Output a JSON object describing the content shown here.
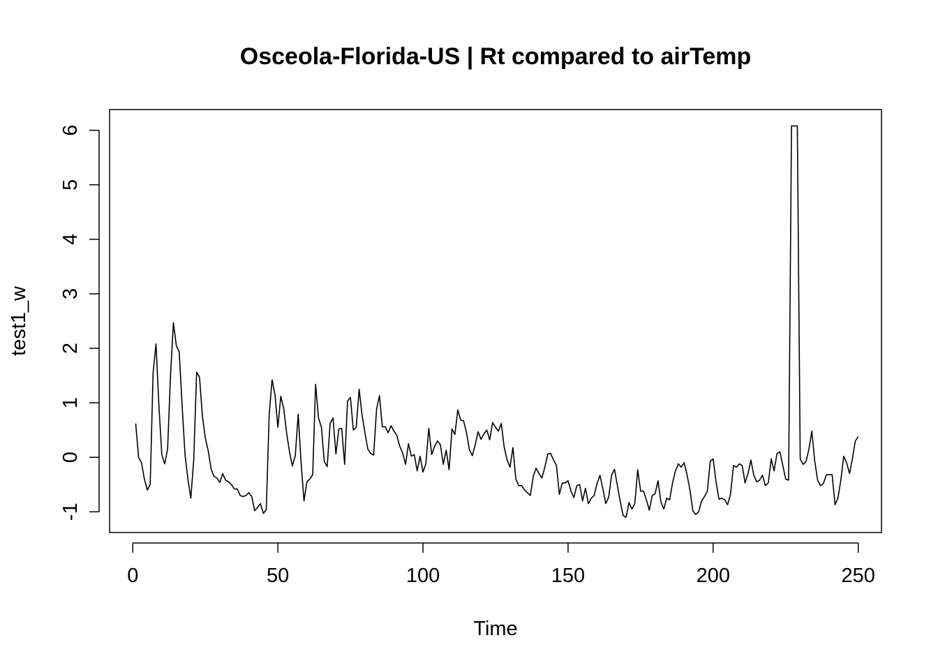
{
  "chart_data": {
    "type": "line",
    "title": "Osceola-Florida-US | Rt compared to airTemp",
    "xlabel": "Time",
    "ylabel": "test1_w",
    "xlim": [
      -8,
      258
    ],
    "ylim": [
      -1.38,
      6.38
    ],
    "x_ticks": [
      0,
      50,
      100,
      150,
      200,
      250
    ],
    "y_ticks": [
      -1,
      0,
      1,
      2,
      3,
      4,
      5,
      6
    ],
    "grid": false,
    "legend": "none",
    "colors": {
      "line": "#000000",
      "background": "#ffffff"
    },
    "series": [
      {
        "x_start": 1,
        "values": [
          0.62,
          0.0,
          -0.1,
          -0.4,
          -0.6,
          -0.5,
          1.55,
          2.08,
          0.95,
          0.05,
          -0.12,
          0.15,
          1.5,
          2.47,
          2.05,
          1.93,
          0.95,
          0.05,
          -0.4,
          -0.75,
          -0.05,
          1.56,
          1.47,
          0.75,
          0.35,
          0.12,
          -0.22,
          -0.35,
          -0.38,
          -0.46,
          -0.3,
          -0.42,
          -0.45,
          -0.5,
          -0.58,
          -0.58,
          -0.7,
          -0.72,
          -0.7,
          -0.65,
          -0.72,
          -0.98,
          -0.92,
          -0.85,
          -1.03,
          -0.96,
          0.78,
          1.42,
          1.15,
          0.55,
          1.12,
          0.9,
          0.45,
          0.1,
          -0.16,
          0.03,
          0.79,
          -0.1,
          -0.8,
          -0.45,
          -0.4,
          -0.32,
          1.34,
          0.72,
          0.55,
          -0.08,
          -0.17,
          0.62,
          0.72,
          0.06,
          0.52,
          0.53,
          -0.13,
          1.03,
          1.1,
          0.5,
          0.55,
          1.25,
          0.78,
          0.45,
          0.15,
          0.07,
          0.04,
          0.88,
          1.13,
          0.56,
          0.56,
          0.45,
          0.58,
          0.48,
          0.4,
          0.2,
          0.08,
          -0.13,
          0.25,
          0.02,
          0.05,
          -0.25,
          0.02,
          -0.27,
          -0.12,
          0.53,
          0.05,
          0.2,
          0.3,
          0.23,
          -0.13,
          0.13,
          -0.23,
          0.52,
          0.42,
          0.87,
          0.68,
          0.67,
          0.45,
          0.14,
          0.03,
          0.23,
          0.47,
          0.33,
          0.43,
          0.5,
          0.32,
          0.64,
          0.55,
          0.48,
          0.62,
          0.18,
          -0.05,
          -0.18,
          0.18,
          -0.4,
          -0.52,
          -0.52,
          -0.6,
          -0.65,
          -0.7,
          -0.35,
          -0.2,
          -0.3,
          -0.38,
          -0.18,
          0.06,
          0.07,
          -0.05,
          -0.15,
          -0.68,
          -0.47,
          -0.47,
          -0.43,
          -0.62,
          -0.74,
          -0.52,
          -0.5,
          -0.8,
          -0.57,
          -0.85,
          -0.75,
          -0.7,
          -0.48,
          -0.33,
          -0.58,
          -0.85,
          -0.73,
          -0.33,
          -0.22,
          -0.52,
          -0.82,
          -1.07,
          -1.1,
          -0.83,
          -0.95,
          -0.85,
          -0.23,
          -0.62,
          -0.62,
          -0.78,
          -0.97,
          -0.7,
          -0.67,
          -0.43,
          -0.82,
          -0.95,
          -0.75,
          -0.78,
          -0.47,
          -0.25,
          -0.12,
          -0.18,
          -0.1,
          -0.32,
          -0.6,
          -0.98,
          -1.05,
          -1.0,
          -0.8,
          -0.72,
          -0.62,
          -0.07,
          -0.03,
          -0.45,
          -0.77,
          -0.75,
          -0.78,
          -0.87,
          -0.67,
          -0.15,
          -0.18,
          -0.12,
          -0.15,
          -0.47,
          -0.3,
          -0.05,
          -0.33,
          -0.45,
          -0.42,
          -0.33,
          -0.52,
          -0.47,
          -0.03,
          -0.25,
          0.07,
          0.1,
          -0.15,
          -0.4,
          -0.42,
          6.08,
          6.08,
          6.08,
          -0.03,
          -0.13,
          -0.08,
          0.15,
          0.48,
          -0.07,
          -0.42,
          -0.52,
          -0.48,
          -0.32,
          -0.32,
          -0.32,
          -0.87,
          -0.75,
          -0.42,
          0.02,
          -0.1,
          -0.3,
          -0.02,
          0.3,
          0.38
        ]
      }
    ]
  }
}
